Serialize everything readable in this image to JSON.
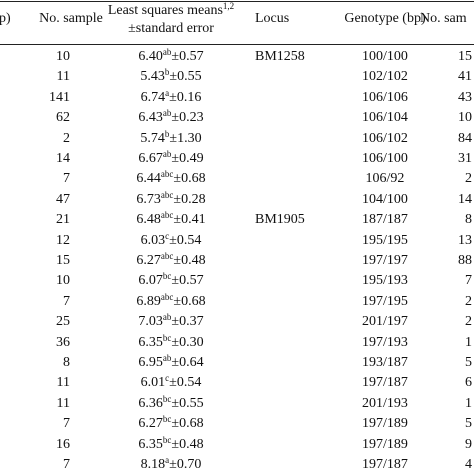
{
  "table": {
    "header": [
      "p)",
      "No. sample",
      {
        "text": "Least squares means",
        "sup": "1,2"
      },
      "±standard error",
      "Locus",
      "Genotype (bp)",
      "No. sam"
    ],
    "rows": [
      {
        "n": "10",
        "mean": "6.40",
        "sup": "ab",
        "se": "±0.57",
        "locus": "BM1258",
        "genotype": "100/100",
        "n2": "15"
      },
      {
        "n": "11",
        "mean": "5.43",
        "sup": "b",
        "se": "±0.55",
        "locus": "",
        "genotype": "102/102",
        "n2": "41"
      },
      {
        "n": "141",
        "mean": "6.74",
        "sup": "a",
        "se": "±0.16",
        "locus": "",
        "genotype": "106/106",
        "n2": "43"
      },
      {
        "n": "62",
        "mean": "6.43",
        "sup": "ab",
        "se": "±0.23",
        "locus": "",
        "genotype": "106/104",
        "n2": "10"
      },
      {
        "n": "2",
        "mean": "5.74",
        "sup": "b",
        "se": "±1.30",
        "locus": "",
        "genotype": "106/102",
        "n2": "84"
      },
      {
        "n": "14",
        "mean": "6.67",
        "sup": "ab",
        "se": "±0.49",
        "locus": "",
        "genotype": "106/100",
        "n2": "31"
      },
      {
        "n": "7",
        "mean": "6.44",
        "sup": "abc",
        "se": "±0.68",
        "locus": "",
        "genotype": "106/92",
        "n2": "2"
      },
      {
        "n": "47",
        "mean": "6.73",
        "sup": "abc",
        "se": "±0.28",
        "locus": "",
        "genotype": "104/100",
        "n2": "14"
      },
      {
        "n": "21",
        "mean": "6.48",
        "sup": "abc",
        "se": "±0.41",
        "locus": "BM1905",
        "genotype": "187/187",
        "n2": "8"
      },
      {
        "n": "12",
        "mean": "6.03",
        "sup": "c",
        "se": "±0.54",
        "locus": "",
        "genotype": "195/195",
        "n2": "13"
      },
      {
        "n": "15",
        "mean": "6.27",
        "sup": "abc",
        "se": "±0.48",
        "locus": "",
        "genotype": "197/197",
        "n2": "88"
      },
      {
        "n": "10",
        "mean": "6.07",
        "sup": "bc",
        "se": "±0.57",
        "locus": "",
        "genotype": "195/193",
        "n2": "7"
      },
      {
        "n": "7",
        "mean": "6.89",
        "sup": "abc",
        "se": "±0.68",
        "locus": "",
        "genotype": "197/195",
        "n2": "2"
      },
      {
        "n": "25",
        "mean": "7.03",
        "sup": "ab",
        "se": "±0.37",
        "locus": "",
        "genotype": "201/197",
        "n2": "2"
      },
      {
        "n": "36",
        "mean": "6.35",
        "sup": "bc",
        "se": "±0.30",
        "locus": "",
        "genotype": "197/193",
        "n2": "1"
      },
      {
        "n": "8",
        "mean": "6.95",
        "sup": "ab",
        "se": "±0.64",
        "locus": "",
        "genotype": "193/187",
        "n2": "5"
      },
      {
        "n": "11",
        "mean": "6.01",
        "sup": "c",
        "se": "±0.54",
        "locus": "",
        "genotype": "197/187",
        "n2": "6"
      },
      {
        "n": "11",
        "mean": "6.36",
        "sup": "bc",
        "se": "±0.55",
        "locus": "",
        "genotype": "201/193",
        "n2": "1"
      },
      {
        "n": "7",
        "mean": "6.27",
        "sup": "bc",
        "se": "±0.68",
        "locus": "",
        "genotype": "197/189",
        "n2": "5"
      },
      {
        "n": "16",
        "mean": "6.35",
        "sup": "bc",
        "se": "±0.48",
        "locus": "",
        "genotype": "197/189",
        "n2": "9"
      },
      {
        "n": "7",
        "mean": "8.18",
        "sup": "a",
        "se": "±0.70",
        "locus": "",
        "genotype": "197/187",
        "n2": "4"
      }
    ]
  }
}
